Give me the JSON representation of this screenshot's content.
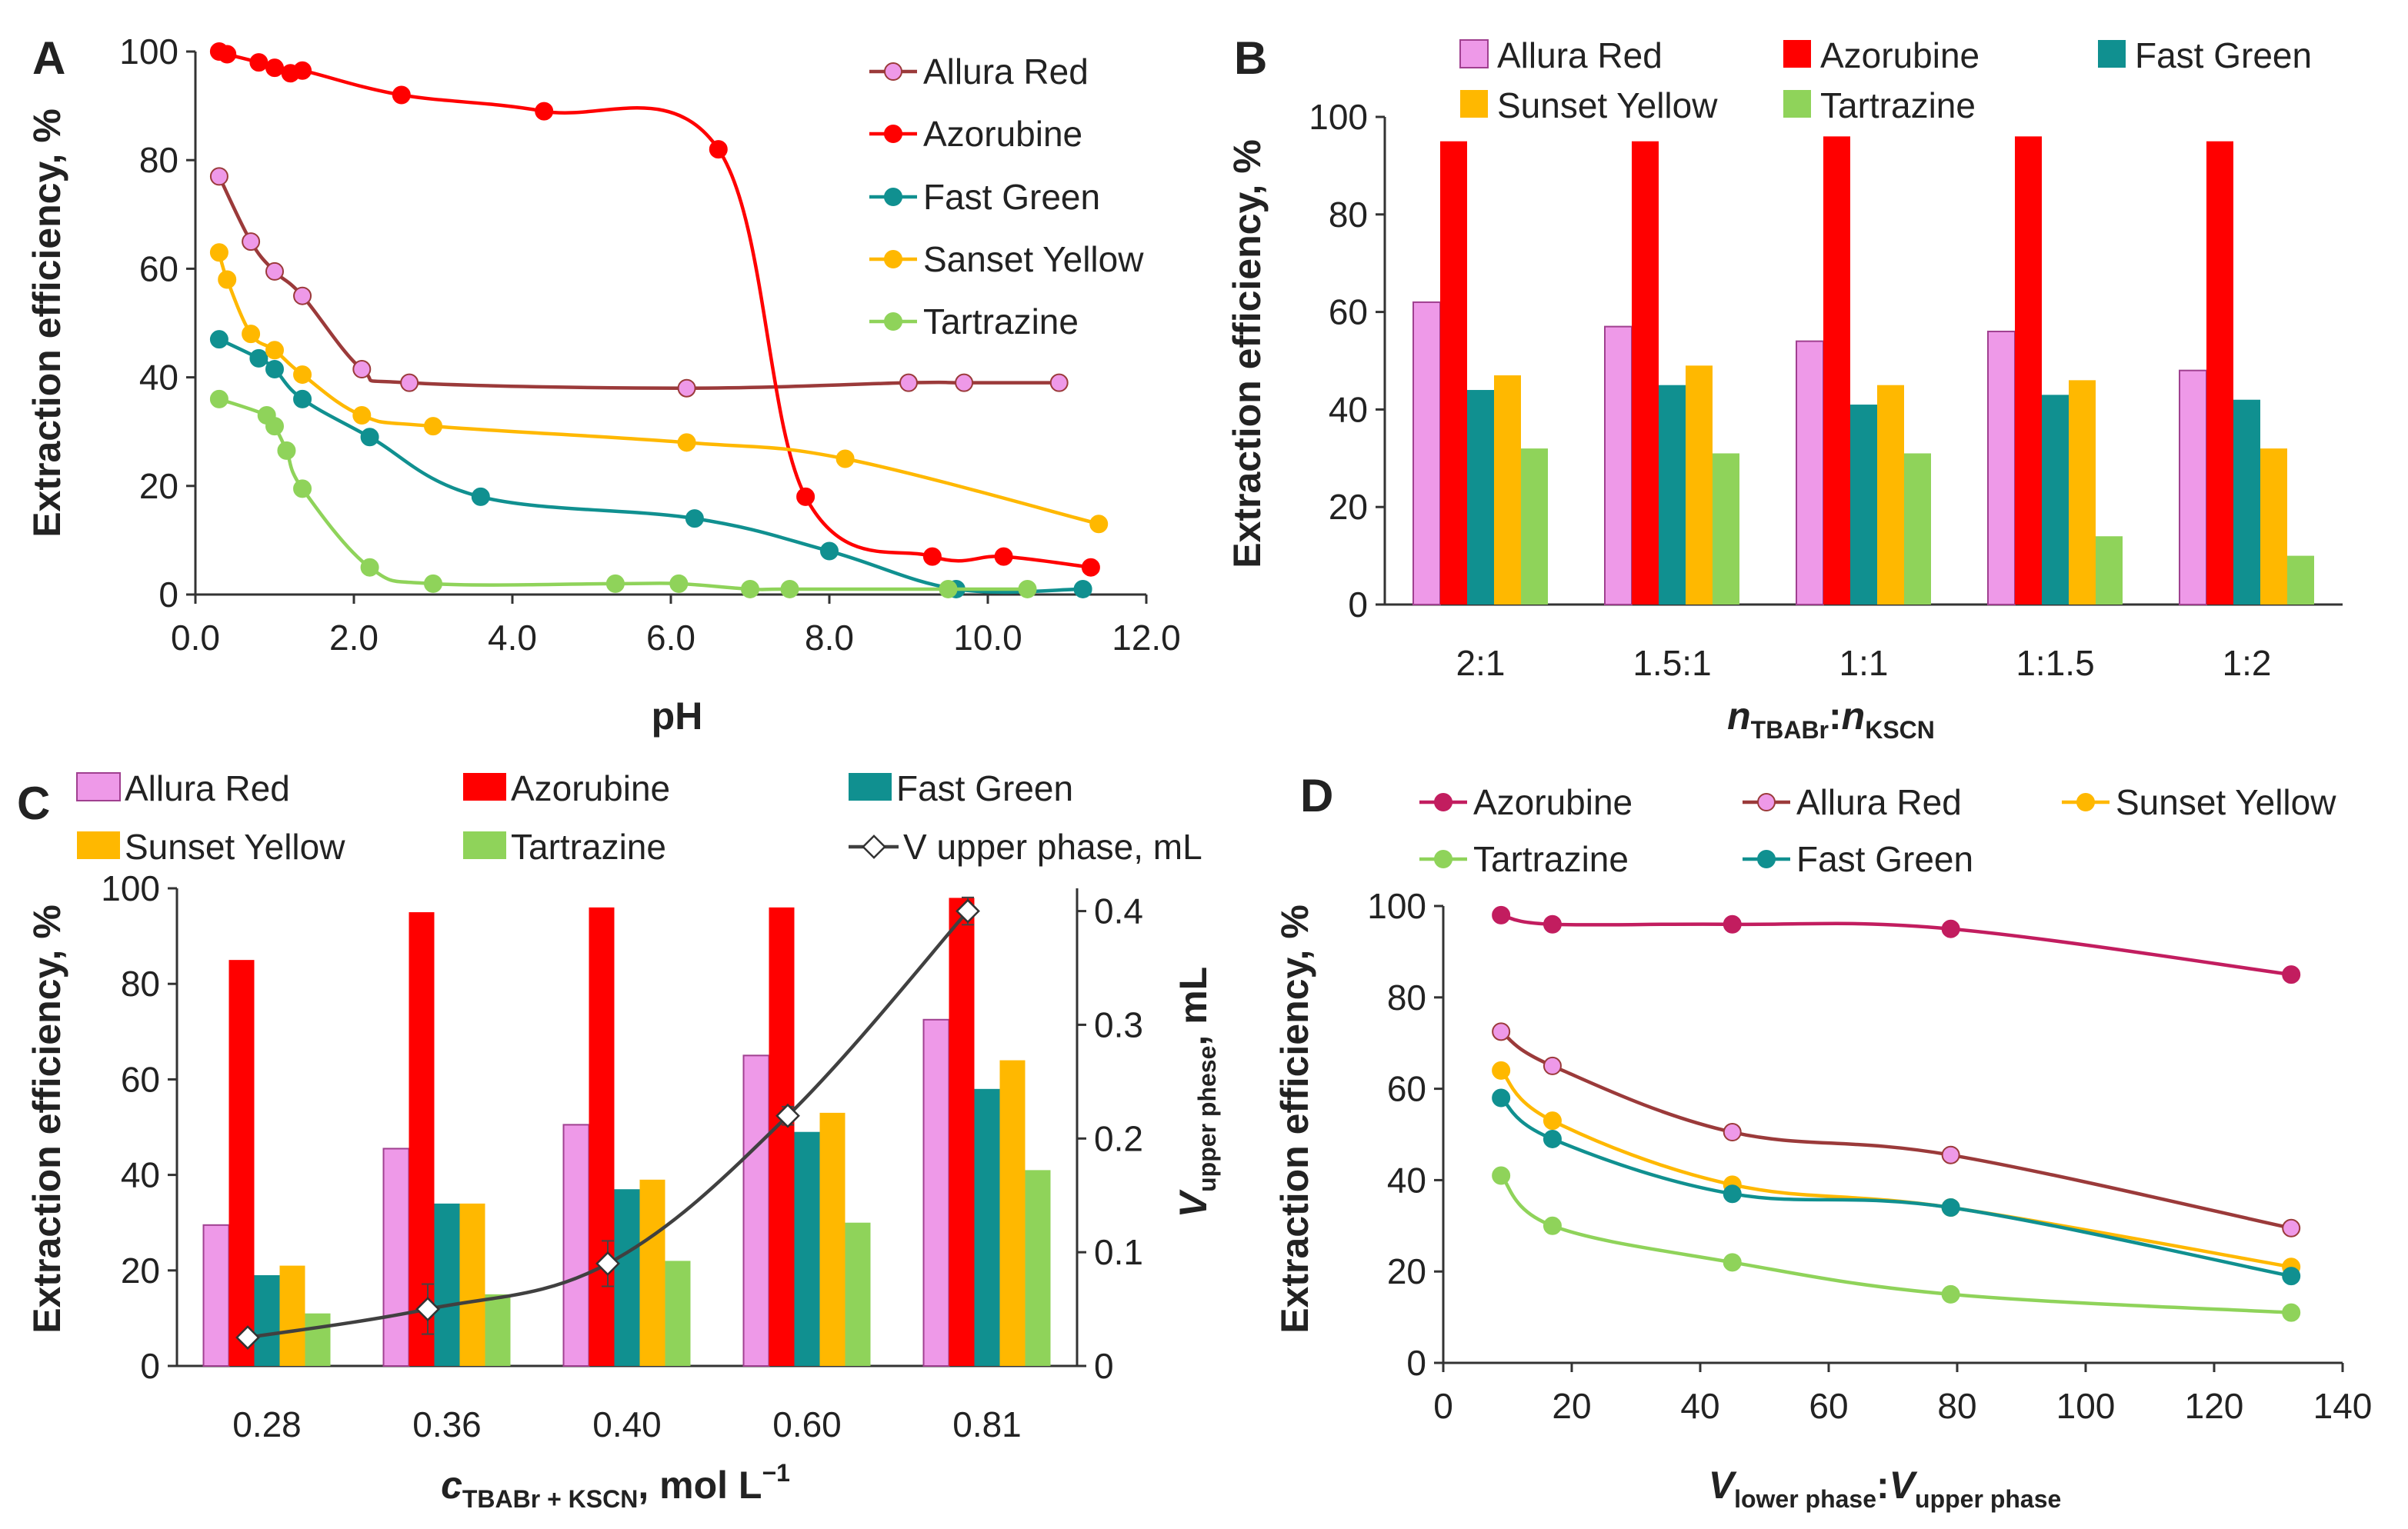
{
  "colors": {
    "allura": "#EE99E8",
    "allura_line": "#9B3A3A",
    "azorubine": "#FF0000",
    "azorubine_d": "#C21D5F",
    "fastgreen": "#109090",
    "sunset": "#FFB800",
    "tartrazine": "#8FD35A",
    "vline": "#404040"
  },
  "chart_data": [
    {
      "panel": "A",
      "type": "line",
      "xlabel": "pH",
      "ylabel": "Extraction efficiency, %",
      "xlim": [
        0,
        12
      ],
      "ylim": [
        0,
        100
      ],
      "xticks": [
        "0.0",
        "2.0",
        "4.0",
        "6.0",
        "8.0",
        "10.0",
        "12.0"
      ],
      "yticks": [
        "0",
        "20",
        "40",
        "60",
        "80",
        "100"
      ],
      "series": [
        {
          "name": "Allura Red",
          "x": [
            0.3,
            0.7,
            1.0,
            1.35,
            2.1,
            2.7,
            6.2,
            9.0,
            9.7,
            10.9
          ],
          "y": [
            77,
            65,
            59.5,
            55,
            41.5,
            39,
            38,
            39,
            39,
            39
          ]
        },
        {
          "name": "Azorubine",
          "x": [
            0.3,
            0.4,
            0.8,
            1.0,
            1.2,
            1.35,
            2.6,
            4.4,
            6.6,
            7.7,
            9.3,
            10.2,
            11.3
          ],
          "y": [
            100,
            99.5,
            98,
            97,
            96,
            96.5,
            92,
            89,
            82,
            18,
            7,
            7,
            5
          ]
        },
        {
          "name": "Fast Green",
          "x": [
            0.3,
            0.8,
            1.0,
            1.35,
            2.2,
            3.6,
            6.3,
            8.0,
            9.6,
            11.2
          ],
          "y": [
            47,
            43.5,
            41.5,
            36,
            29,
            18,
            14,
            8,
            1,
            1
          ]
        },
        {
          "name": "Sanset Yellow",
          "x": [
            0.3,
            0.4,
            0.7,
            1.0,
            1.35,
            2.1,
            3.0,
            6.2,
            8.2,
            11.4
          ],
          "y": [
            63,
            58,
            48,
            45,
            40.5,
            33,
            31,
            28,
            25,
            13
          ]
        },
        {
          "name": "Tartrazine",
          "x": [
            0.3,
            0.9,
            1.0,
            1.15,
            1.35,
            2.2,
            3.0,
            5.3,
            6.1,
            7.0,
            7.5,
            9.5,
            10.5
          ],
          "y": [
            36,
            33,
            31,
            26.5,
            19.5,
            5,
            2,
            2,
            2,
            1,
            1,
            1,
            1
          ]
        }
      ]
    },
    {
      "panel": "B",
      "type": "bar",
      "xlabel_main": "n",
      "xlabel_sub1": "TBABr",
      "xlabel_sep": ":",
      "xlabel_sub2": "KSCN",
      "ylabel": "Extraction efficiency, %",
      "ylim": [
        0,
        100
      ],
      "yticks": [
        "0",
        "20",
        "40",
        "60",
        "80",
        "100"
      ],
      "categories": [
        "2:1",
        "1.5:1",
        "1:1",
        "1:1.5",
        "1:2"
      ],
      "series": [
        {
          "name": "Allura Red",
          "values": [
            62,
            57,
            54,
            56,
            48
          ]
        },
        {
          "name": "Azorubine",
          "values": [
            95,
            95,
            96,
            96,
            95
          ]
        },
        {
          "name": "Fast Green",
          "values": [
            44,
            45,
            41,
            43,
            42
          ]
        },
        {
          "name": "Sunset Yellow",
          "values": [
            47,
            49,
            45,
            46,
            32
          ]
        },
        {
          "name": "Tartrazine",
          "values": [
            32,
            31,
            31,
            14,
            10
          ]
        }
      ]
    },
    {
      "panel": "C",
      "type": "bar",
      "xlabel_main": "c",
      "xlabel_sub": "TBABr + KSCN",
      "xlabel_rest": ", mol L",
      "xlabel_sup": "−1",
      "ylabel": "Extraction efficiency, %",
      "y2label_main": "V",
      "y2label_sub": "upper phese",
      "y2label_rest": ", mL",
      "ylim": [
        0,
        100
      ],
      "y2lim": [
        0,
        0.42
      ],
      "yticks": [
        "0",
        "20",
        "40",
        "60",
        "80",
        "100"
      ],
      "y2ticks": [
        "0",
        "0.1",
        "0.2",
        "0.3",
        "0.4"
      ],
      "categories": [
        "0.28",
        "0.36",
        "0.40",
        "0.60",
        "0.81"
      ],
      "series": [
        {
          "name": "Allura Red",
          "values": [
            29.5,
            45.5,
            50.5,
            65,
            72.5
          ]
        },
        {
          "name": "Azorubine",
          "values": [
            85,
            95,
            96,
            96,
            98
          ]
        },
        {
          "name": "Fast Green",
          "values": [
            19,
            34,
            37,
            49,
            58
          ]
        },
        {
          "name": "Sunset Yellow",
          "values": [
            21,
            34,
            39,
            53,
            64
          ]
        },
        {
          "name": "Tartrazine",
          "values": [
            11,
            15,
            22,
            30,
            41
          ]
        }
      ],
      "line_series": {
        "name": "V upper phase, mL",
        "values": [
          0.025,
          0.05,
          0.09,
          0.22,
          0.4
        ],
        "errors": [
          0.003,
          0.022,
          0.02,
          0.008,
          0.012
        ]
      }
    },
    {
      "panel": "D",
      "type": "line",
      "xlabel_main": "V",
      "xlabel_sub1": "lower phase",
      "xlabel_sep": ":",
      "xlabel_sub2": "upper phase",
      "ylabel": "Extraction efficiency, %",
      "xlim": [
        0,
        140
      ],
      "ylim": [
        0,
        100
      ],
      "xticks": [
        "0",
        "20",
        "40",
        "60",
        "80",
        "100",
        "120",
        "140"
      ],
      "yticks": [
        "0",
        "20",
        "40",
        "60",
        "80",
        "100"
      ],
      "series": [
        {
          "name": "Azorubine",
          "x": [
            9,
            17,
            45,
            79,
            132
          ],
          "y": [
            98,
            96,
            96,
            95,
            85
          ]
        },
        {
          "name": "Allura Red",
          "x": [
            9,
            17,
            45,
            79,
            132
          ],
          "y": [
            72.5,
            65,
            50.5,
            45.5,
            29.5
          ]
        },
        {
          "name": "Sunset Yellow",
          "x": [
            9,
            17,
            45,
            79,
            132
          ],
          "y": [
            64,
            53,
            39,
            34,
            21
          ]
        },
        {
          "name": "Tartrazine",
          "x": [
            9,
            17,
            45,
            79,
            132
          ],
          "y": [
            41,
            30,
            22,
            15,
            11
          ]
        },
        {
          "name": "Fast Green",
          "x": [
            9,
            17,
            45,
            79,
            132
          ],
          "y": [
            58,
            49,
            37,
            34,
            19
          ]
        }
      ]
    }
  ]
}
